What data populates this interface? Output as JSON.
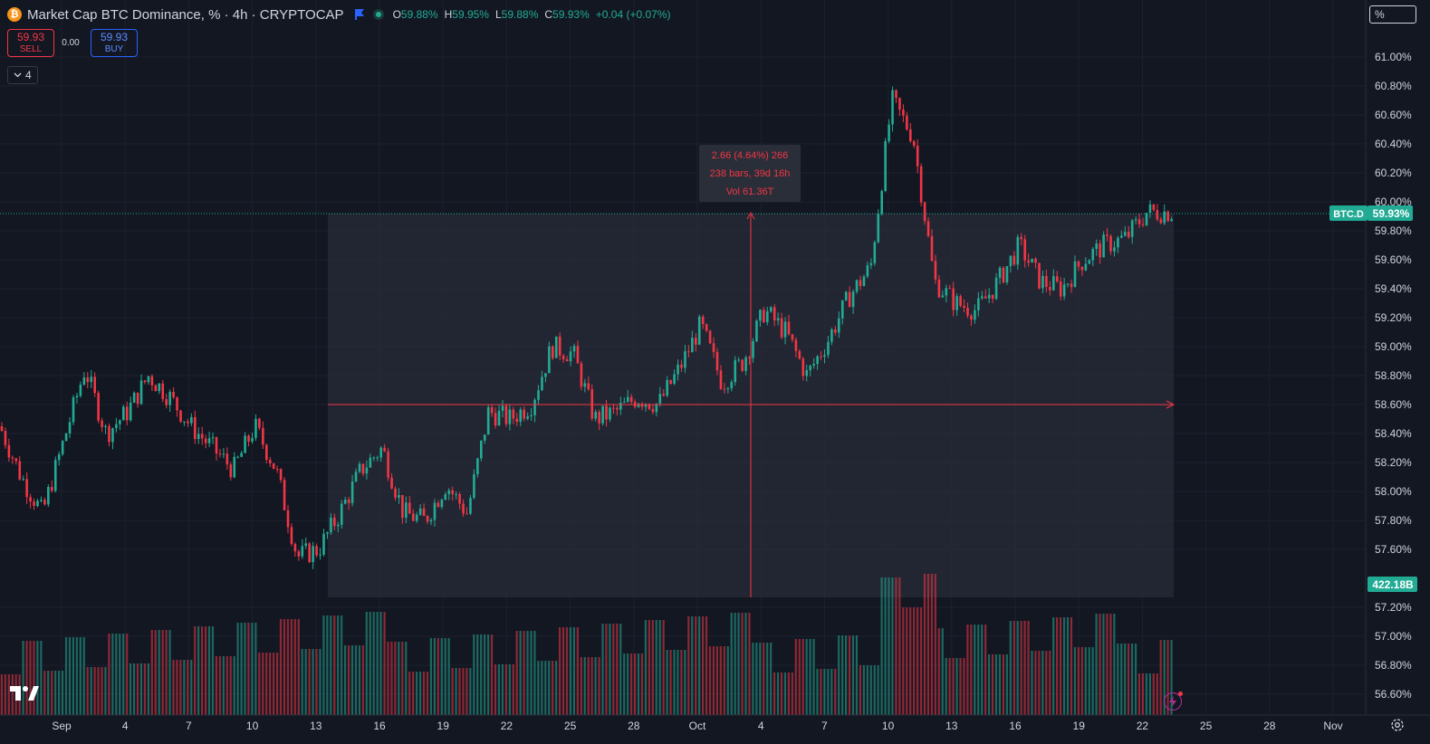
{
  "header": {
    "logo_glyph": "₿",
    "title": "Market Cap BTC Dominance, % · 4h · CRYPTOCAP",
    "ohlc": [
      {
        "key": "O",
        "value": "59.88%"
      },
      {
        "key": "H",
        "value": "59.95%"
      },
      {
        "key": "L",
        "value": "59.88%"
      },
      {
        "key": "C",
        "value": "59.93%"
      }
    ],
    "change": "+0.04 (+0.07%)"
  },
  "trade": {
    "sell_price": "59.93",
    "sell_label": "SELL",
    "spread": "0.00",
    "buy_price": "59.93",
    "buy_label": "BUY"
  },
  "indicators_toggle": {
    "count": "4"
  },
  "scale_mode": "%",
  "measure": {
    "line1": "2.66 (4.64%) 266",
    "line2": "238 bars, 39d 16h",
    "line3": "Vol 61.36T"
  },
  "colors": {
    "background": "#131722",
    "up": "#22ab94",
    "down": "#f23645",
    "up_volume": "#22ab94",
    "down_volume": "#f23645",
    "grid": "#1c2030",
    "axis_text": "#d1d4dc",
    "measure_fill": "#2a2e39",
    "measure_line": "#f23645",
    "current_price_tag": "#22ab94"
  },
  "chart_data": {
    "type": "candlestick",
    "title": "Market Cap BTC Dominance, % · 4h · CRYPTOCAP",
    "y_axis": {
      "ticks": [
        "61.00%",
        "60.80%",
        "60.60%",
        "60.40%",
        "60.20%",
        "60.00%",
        "59.80%",
        "59.60%",
        "59.40%",
        "59.20%",
        "59.00%",
        "58.80%",
        "58.60%",
        "58.40%",
        "58.20%",
        "58.00%",
        "57.80%",
        "57.60%",
        "57.20%",
        "57.00%",
        "56.80%",
        "56.60%"
      ],
      "ylim": [
        56.55,
        61.12
      ]
    },
    "x_axis": {
      "tick_labels": [
        "Sep",
        "4",
        "7",
        "10",
        "13",
        "16",
        "19",
        "22",
        "25",
        "28",
        "Oct",
        "4",
        "7",
        "10",
        "13",
        "16",
        "19",
        "22",
        "25",
        "28",
        "Nov"
      ]
    },
    "current_price": {
      "symbol": "BTC.D",
      "value": 59.93,
      "label": "59.93%"
    },
    "volume_label": "422.18B",
    "price_path": [
      {
        "date": "Aug 30",
        "value": 58.45
      },
      {
        "date": "Aug 31",
        "value": 58.1
      },
      {
        "date": "Sep 1",
        "value": 57.85
      },
      {
        "date": "Sep 2",
        "value": 58.35
      },
      {
        "date": "Sep 3",
        "value": 58.85
      },
      {
        "date": "Sep 4",
        "value": 58.4
      },
      {
        "date": "Sep 5",
        "value": 58.55
      },
      {
        "date": "Sep 6",
        "value": 58.8
      },
      {
        "date": "Sep 7",
        "value": 58.65
      },
      {
        "date": "Sep 8",
        "value": 58.45
      },
      {
        "date": "Sep 9",
        "value": 58.3
      },
      {
        "date": "Sep 10",
        "value": 58.15
      },
      {
        "date": "Sep 11",
        "value": 58.45
      },
      {
        "date": "Sep 12",
        "value": 58.15
      },
      {
        "date": "Sep 13",
        "value": 57.55
      },
      {
        "date": "Sep 14",
        "value": 57.6
      },
      {
        "date": "Sep 15",
        "value": 57.85
      },
      {
        "date": "Sep 16",
        "value": 58.15
      },
      {
        "date": "Sep 17",
        "value": 58.3
      },
      {
        "date": "Sep 18",
        "value": 57.85
      },
      {
        "date": "Sep 19",
        "value": 57.8
      },
      {
        "date": "Sep 20",
        "value": 58.05
      },
      {
        "date": "Sep 21",
        "value": 57.85
      },
      {
        "date": "Sep 22",
        "value": 58.55
      },
      {
        "date": "Sep 23",
        "value": 58.5
      },
      {
        "date": "Sep 24",
        "value": 58.6
      },
      {
        "date": "Sep 25",
        "value": 59.0
      },
      {
        "date": "Sep 26",
        "value": 58.95
      },
      {
        "date": "Sep 27",
        "value": 58.5
      },
      {
        "date": "Sep 28",
        "value": 58.55
      },
      {
        "date": "Sep 29",
        "value": 58.65
      },
      {
        "date": "Sep 30",
        "value": 58.6
      },
      {
        "date": "Oct 1",
        "value": 58.85
      },
      {
        "date": "Oct 2",
        "value": 59.15
      },
      {
        "date": "Oct 3",
        "value": 58.75
      },
      {
        "date": "Oct 4",
        "value": 58.9
      },
      {
        "date": "Oct 5",
        "value": 59.25
      },
      {
        "date": "Oct 6",
        "value": 59.1
      },
      {
        "date": "Oct 7",
        "value": 58.8
      },
      {
        "date": "Oct 8",
        "value": 59.05
      },
      {
        "date": "Oct 9",
        "value": 59.35
      },
      {
        "date": "Oct 10",
        "value": 59.55
      },
      {
        "date": "Oct 11",
        "value": 60.7
      },
      {
        "date": "Oct 12",
        "value": 60.45
      },
      {
        "date": "Oct 13",
        "value": 59.45
      },
      {
        "date": "Oct 14",
        "value": 59.3
      },
      {
        "date": "Oct 15",
        "value": 59.25
      },
      {
        "date": "Oct 16",
        "value": 59.45
      },
      {
        "date": "Oct 17",
        "value": 59.7
      },
      {
        "date": "Oct 18",
        "value": 59.45
      },
      {
        "date": "Oct 19",
        "value": 59.4
      },
      {
        "date": "Oct 20",
        "value": 59.6
      },
      {
        "date": "Oct 21",
        "value": 59.7
      },
      {
        "date": "Oct 22",
        "value": 59.75
      },
      {
        "date": "Oct 23",
        "value": 59.93
      }
    ]
  }
}
